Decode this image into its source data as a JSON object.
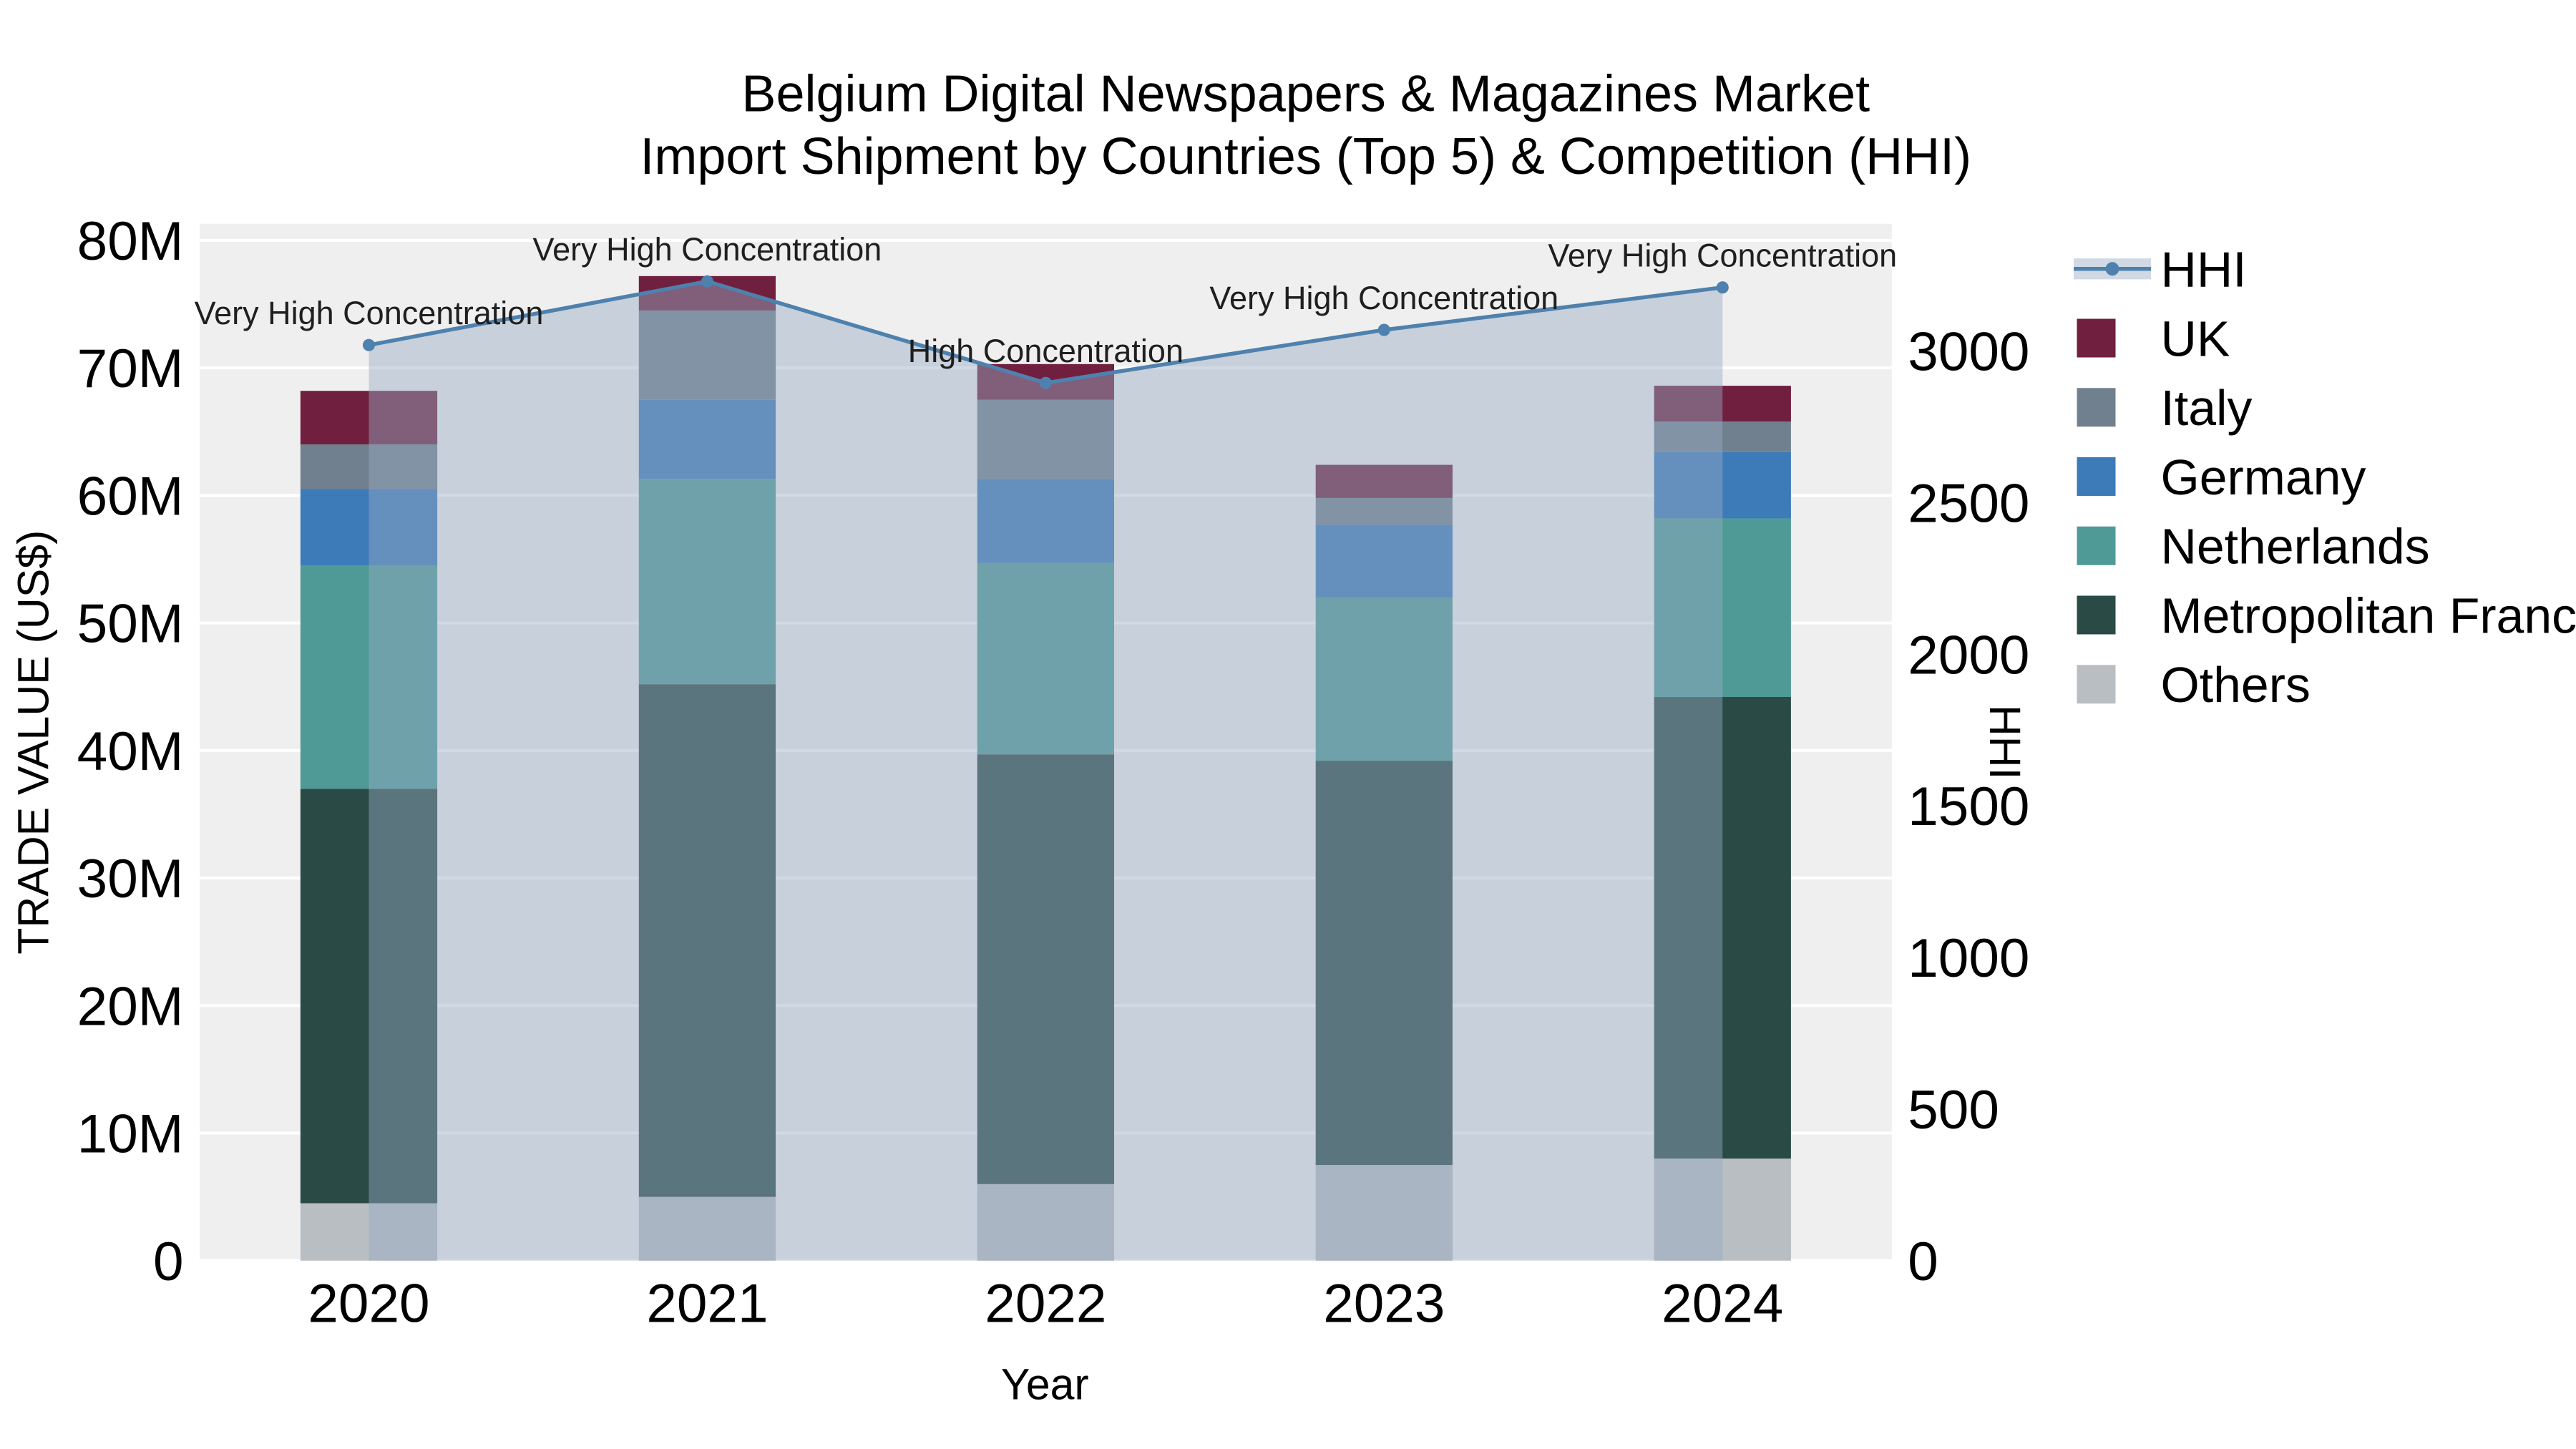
{
  "title": {
    "line1": "Belgium Digital Newspapers & Magazines Market",
    "line2": "Import Shipment by Countries (Top 5) & Competition (HHI)"
  },
  "chart_data": {
    "type": "bar",
    "stacked": true,
    "x_title": "Year",
    "y_left_title": "TRADE VALUE (US$)",
    "y_right_title": "HHI",
    "unit": "Million US$ (trade value), index points (HHI)",
    "categories": [
      "2020",
      "2021",
      "2022",
      "2023",
      "2024"
    ],
    "series_bottom_to_top": [
      {
        "name": "Others",
        "color": "#b9bec3",
        "values": [
          4.5,
          5.0,
          6.0,
          7.5,
          8.0
        ]
      },
      {
        "name": "Metropolitan France",
        "color": "#2a4a45",
        "values": [
          32.5,
          40.2,
          33.7,
          31.7,
          36.2
        ]
      },
      {
        "name": "Netherlands",
        "color": "#4f9a97",
        "values": [
          17.5,
          16.1,
          15.0,
          12.8,
          14.0
        ]
      },
      {
        "name": "Germany",
        "color": "#3d7ab8",
        "values": [
          6.0,
          6.2,
          6.6,
          5.7,
          5.2
        ]
      },
      {
        "name": "Italy",
        "color": "#71808f",
        "values": [
          3.5,
          7.0,
          6.2,
          2.1,
          2.4
        ]
      },
      {
        "name": "UK",
        "color": "#701f3e",
        "values": [
          4.2,
          2.7,
          2.8,
          2.6,
          2.8
        ]
      }
    ],
    "hhi_line": {
      "name": "HHI",
      "color": "#4e81ad",
      "area_fill": "rgba(150,170,195,0.45)",
      "values": [
        3020,
        3230,
        2895,
        3070,
        3210
      ],
      "annotations": [
        "Very High Concentration",
        "Very High Concentration",
        "High Concentration",
        "Very High Concentration",
        "Very High Concentration"
      ]
    },
    "y_left_axis": {
      "max": 81.3,
      "ticks": [
        {
          "value": 0,
          "label": "0"
        },
        {
          "value": 10,
          "label": "10M"
        },
        {
          "value": 20,
          "label": "20M"
        },
        {
          "value": 30,
          "label": "30M"
        },
        {
          "value": 40,
          "label": "40M"
        },
        {
          "value": 50,
          "label": "50M"
        },
        {
          "value": 60,
          "label": "60M"
        },
        {
          "value": 70,
          "label": "70M"
        },
        {
          "value": 80,
          "label": "80M"
        }
      ]
    },
    "y_right_axis": {
      "max": 3420,
      "ticks": [
        {
          "value": 0,
          "label": "0"
        },
        {
          "value": 500,
          "label": "500"
        },
        {
          "value": 1000,
          "label": "1000"
        },
        {
          "value": 1500,
          "label": "1500"
        },
        {
          "value": 2000,
          "label": "2000"
        },
        {
          "value": 2500,
          "label": "2500"
        },
        {
          "value": 3000,
          "label": "3000"
        }
      ]
    },
    "legend_order": [
      "HHI",
      "UK",
      "Italy",
      "Germany",
      "Netherlands",
      "Metropolitan France",
      "Others"
    ],
    "legend_position": "right-top",
    "grid": true,
    "plot_bg": "#efefef",
    "grid_color": "#ffffff"
  }
}
